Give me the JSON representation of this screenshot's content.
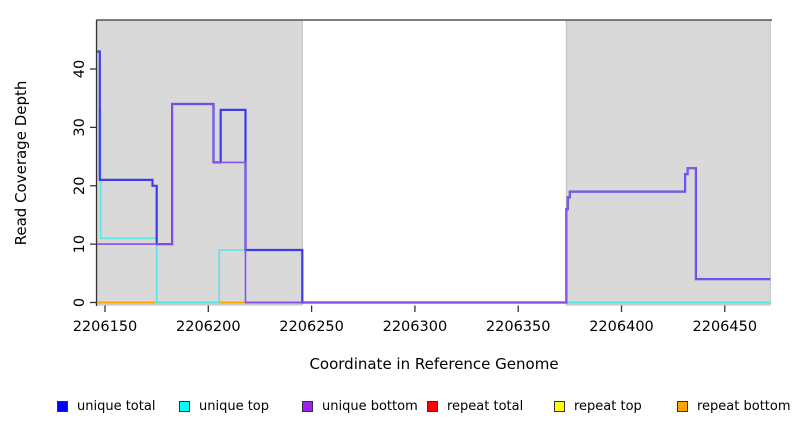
{
  "chart_data": {
    "type": "line",
    "style": "step",
    "title": "",
    "xlabel": "Coordinate in Reference Genome",
    "ylabel": "Read Coverage Depth",
    "xlim": [
      2206146,
      2206472
    ],
    "ylim": [
      0,
      48
    ],
    "grid": false,
    "xticks": [
      2206150,
      2206200,
      2206250,
      2206300,
      2206350,
      2206400,
      2206450
    ],
    "xtick_labels": [
      "2206150",
      "2206200",
      "2206250",
      "2206300",
      "2206350",
      "2206400",
      "2206450"
    ],
    "yticks": [
      0,
      10,
      20,
      30,
      40
    ],
    "ytick_labels": [
      "0",
      "10",
      "20",
      "30",
      "40"
    ],
    "shaded_regions": [
      {
        "x0": 2206146,
        "x1": 2206245.5,
        "fill": "#d9d9d9",
        "edge": "#bdbdbd"
      },
      {
        "x0": 2206373.3,
        "x1": 2206472,
        "fill": "#d9d9d9",
        "edge": "#bdbdbd"
      }
    ],
    "series": [
      {
        "name": "unique total",
        "swatch_color": "#0000FF",
        "line_color": "#3C3CE8",
        "width": 2.2,
        "points": [
          [
            2206146.2,
            43
          ],
          [
            2206147.5,
            21
          ],
          [
            2206173,
            20
          ],
          [
            2206175,
            10
          ],
          [
            2206182.5,
            34
          ],
          [
            2206202.5,
            24
          ],
          [
            2206206,
            33
          ],
          [
            2206218,
            9
          ],
          [
            2206245.5,
            0
          ],
          [
            2206373.3,
            16
          ],
          [
            2206374,
            18
          ],
          [
            2206375,
            19
          ],
          [
            2206430.8,
            22
          ],
          [
            2206432,
            23
          ],
          [
            2206436,
            4
          ],
          [
            2206472,
            4
          ]
        ]
      },
      {
        "name": "unique top",
        "swatch_color": "#00FFFF",
        "line_color": "#5CE6E6",
        "width": 1.6,
        "points": [
          [
            2206146.2,
            33
          ],
          [
            2206147.9,
            11
          ],
          [
            2206175,
            0
          ],
          [
            2206205.3,
            9
          ],
          [
            2206245.5,
            0
          ],
          [
            2206472,
            0
          ]
        ]
      },
      {
        "name": "unique bottom",
        "swatch_color": "#A020F0",
        "line_color": "#8A52E8",
        "width": 1.6,
        "points": [
          [
            2206146.2,
            10
          ],
          [
            2206182.5,
            34
          ],
          [
            2206202.5,
            24
          ],
          [
            2206218,
            0
          ],
          [
            2206373.3,
            16
          ],
          [
            2206374,
            18
          ],
          [
            2206375,
            19
          ],
          [
            2206430.8,
            22
          ],
          [
            2206432,
            23
          ],
          [
            2206436,
            4
          ],
          [
            2206472,
            4
          ]
        ]
      },
      {
        "name": "repeat total",
        "swatch_color": "#FF0000",
        "line_color": "#D9404F",
        "width": 1.4,
        "points": [
          [
            2206146.2,
            0
          ],
          [
            2206472,
            0
          ]
        ]
      },
      {
        "name": "repeat top",
        "swatch_color": "#FFFF00",
        "line_color": "#E8E845",
        "width": 1.4,
        "points": [
          [
            2206146.2,
            0
          ],
          [
            2206472,
            0
          ]
        ]
      },
      {
        "name": "repeat bottom",
        "swatch_color": "#FFA500",
        "line_color": "#FFA500",
        "width": 1.4,
        "points": [
          [
            2206146.2,
            0
          ],
          [
            2206472,
            0
          ]
        ]
      }
    ],
    "baseline_overlays": [
      {
        "x0": 2206146.2,
        "x1": 2206175,
        "color": "#FFA500"
      },
      {
        "x0": 2206175,
        "x1": 2206205.3,
        "color": "#74C97E"
      },
      {
        "x0": 2206205.3,
        "x1": 2206218,
        "color": "#FFA500"
      },
      {
        "x0": 2206218,
        "x1": 2206245.5,
        "color": "#D5495F"
      },
      {
        "x0": 2206373.3,
        "x1": 2206472,
        "color": "#74C97E"
      }
    ],
    "legend": {
      "position": "bottom",
      "items": [
        {
          "label": "unique total",
          "color": "#0000FF"
        },
        {
          "label": "unique top",
          "color": "#00FFFF"
        },
        {
          "label": "unique bottom",
          "color": "#A020F0"
        },
        {
          "label": "repeat total",
          "color": "#FF0000"
        },
        {
          "label": "repeat top",
          "color": "#FFFF00"
        },
        {
          "label": "repeat bottom",
          "color": "#FFA500"
        }
      ]
    },
    "axis_color": "#333333",
    "top_border_color": "#555555"
  }
}
